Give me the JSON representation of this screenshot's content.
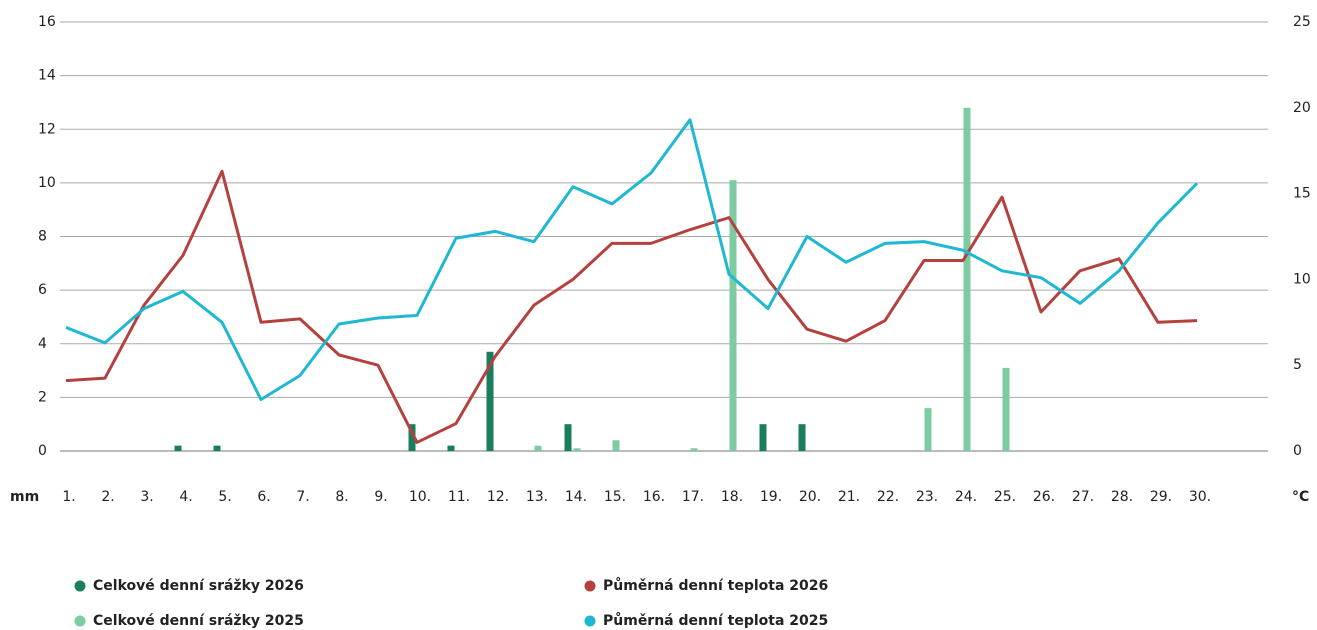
{
  "chart_data": {
    "type": "combo",
    "categories": [
      "1.",
      "2.",
      "3.",
      "4.",
      "5.",
      "6.",
      "7.",
      "8.",
      "9.",
      "10.",
      "11.",
      "12.",
      "13.",
      "14.",
      "15.",
      "16.",
      "17.",
      "18.",
      "19.",
      "20.",
      "21.",
      "22.",
      "23.",
      "24.",
      "25.",
      "26.",
      "27.",
      "28.",
      "29.",
      "30."
    ],
    "ylabel": "mm",
    "y2label": "°C",
    "ylim": [
      0,
      16
    ],
    "yticks": [
      0,
      2,
      4,
      6,
      8,
      10,
      12,
      14,
      16
    ],
    "y2lim": [
      0,
      25
    ],
    "y2ticks": [
      0,
      5,
      10,
      15,
      20,
      25
    ],
    "grid": true,
    "legend": "bottom",
    "series": [
      {
        "name": "Celkové denní srážky 2026",
        "type": "bar",
        "color": "#1a7d5e",
        "values": [
          0,
          0,
          0,
          0.2,
          0.2,
          0,
          0,
          0,
          0,
          1.0,
          0.2,
          3.7,
          0,
          1.0,
          0,
          0,
          0,
          0,
          1.0,
          1.0,
          0,
          0,
          0,
          0,
          0,
          0,
          0,
          0,
          0,
          0
        ]
      },
      {
        "name": "Půměrná denní teplota 2026",
        "type": "line",
        "axis": "y2",
        "color": "#b5413f",
        "values": [
          4.1,
          4.25,
          8.5,
          11.4,
          16.3,
          7.5,
          7.7,
          5.6,
          5.0,
          0.5,
          1.6,
          5.5,
          8.5,
          10.0,
          12.1,
          12.1,
          12.9,
          13.6,
          10.0,
          7.1,
          6.4,
          7.6,
          11.1,
          11.1,
          14.8,
          8.1,
          10.5,
          11.2,
          7.5,
          7.6
        ]
      },
      {
        "name": "Celkové denní srážky 2025",
        "type": "bar",
        "color": "#7dcba0",
        "values": [
          0,
          0,
          0,
          0,
          0,
          0,
          0,
          0,
          0,
          0,
          0,
          0,
          0.2,
          0.1,
          0.4,
          0,
          0.1,
          10.1,
          0,
          0,
          0,
          0,
          1.6,
          12.8,
          3.1,
          0,
          0,
          0,
          0,
          0
        ]
      },
      {
        "name": "Půměrná denní teplota 2025",
        "type": "line",
        "axis": "y2",
        "color": "#1fb8d3",
        "values": [
          7.2,
          6.3,
          8.3,
          9.3,
          7.5,
          3.0,
          4.4,
          7.4,
          7.75,
          7.9,
          12.4,
          12.8,
          12.2,
          15.4,
          14.4,
          16.2,
          19.3,
          10.3,
          8.3,
          12.5,
          11.0,
          12.1,
          12.2,
          11.7,
          10.5,
          10.1,
          8.6,
          10.5,
          13.3,
          15.6
        ]
      }
    ]
  }
}
